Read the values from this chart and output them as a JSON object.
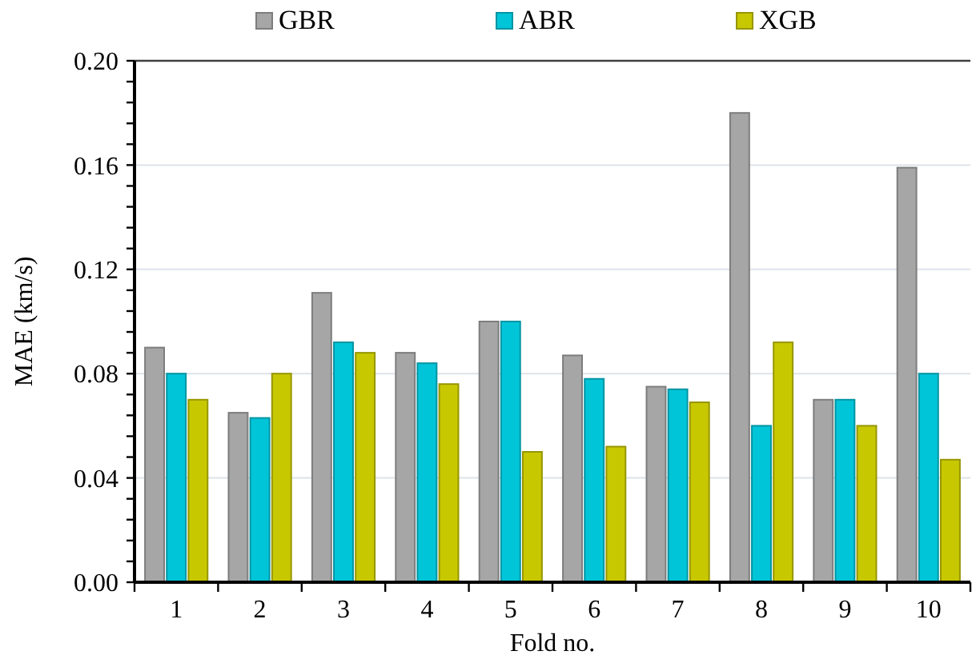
{
  "chart_data": {
    "type": "bar",
    "xlabel": "Fold no.",
    "ylabel": "MAE (km/s)",
    "categories": [
      "1",
      "2",
      "3",
      "4",
      "5",
      "6",
      "7",
      "8",
      "9",
      "10"
    ],
    "series": [
      {
        "name": "GBR",
        "color": "#a6a6a6",
        "values": [
          0.09,
          0.065,
          0.111,
          0.088,
          0.1,
          0.087,
          0.075,
          0.18,
          0.07,
          0.159
        ]
      },
      {
        "name": "ABR",
        "color": "#00c5d8",
        "values": [
          0.08,
          0.063,
          0.092,
          0.084,
          0.1,
          0.078,
          0.074,
          0.06,
          0.07,
          0.08
        ]
      },
      {
        "name": "XGB",
        "color": "#c8c800",
        "values": [
          0.07,
          0.08,
          0.088,
          0.076,
          0.05,
          0.052,
          0.069,
          0.092,
          0.06,
          0.047
        ]
      }
    ],
    "ylim": [
      0,
      0.2
    ],
    "yticks": [
      {
        "value": 0,
        "label": "0.00"
      },
      {
        "value": 0.008,
        "label": null
      },
      {
        "value": 0.016,
        "label": null
      },
      {
        "value": 0.024,
        "label": null
      },
      {
        "value": 0.032,
        "label": null
      },
      {
        "value": 0.04,
        "label": "0.04"
      },
      {
        "value": 0.048,
        "label": null
      },
      {
        "value": 0.056,
        "label": null
      },
      {
        "value": 0.064,
        "label": null
      },
      {
        "value": 0.072,
        "label": null
      },
      {
        "value": 0.08,
        "label": "0.08"
      },
      {
        "value": 0.088,
        "label": null
      },
      {
        "value": 0.096,
        "label": null
      },
      {
        "value": 0.104,
        "label": null
      },
      {
        "value": 0.112,
        "label": null
      },
      {
        "value": 0.12,
        "label": "0.12"
      },
      {
        "value": 0.128,
        "label": null
      },
      {
        "value": 0.136,
        "label": null
      },
      {
        "value": 0.144,
        "label": null
      },
      {
        "value": 0.152,
        "label": null
      },
      {
        "value": 0.16,
        "label": "0.16"
      },
      {
        "value": 0.168,
        "label": null
      },
      {
        "value": 0.176,
        "label": null
      },
      {
        "value": 0.184,
        "label": null
      },
      {
        "value": 0.192,
        "label": null
      },
      {
        "value": 0.2,
        "label": "0.20"
      }
    ],
    "grid": "y",
    "legend": "top"
  }
}
